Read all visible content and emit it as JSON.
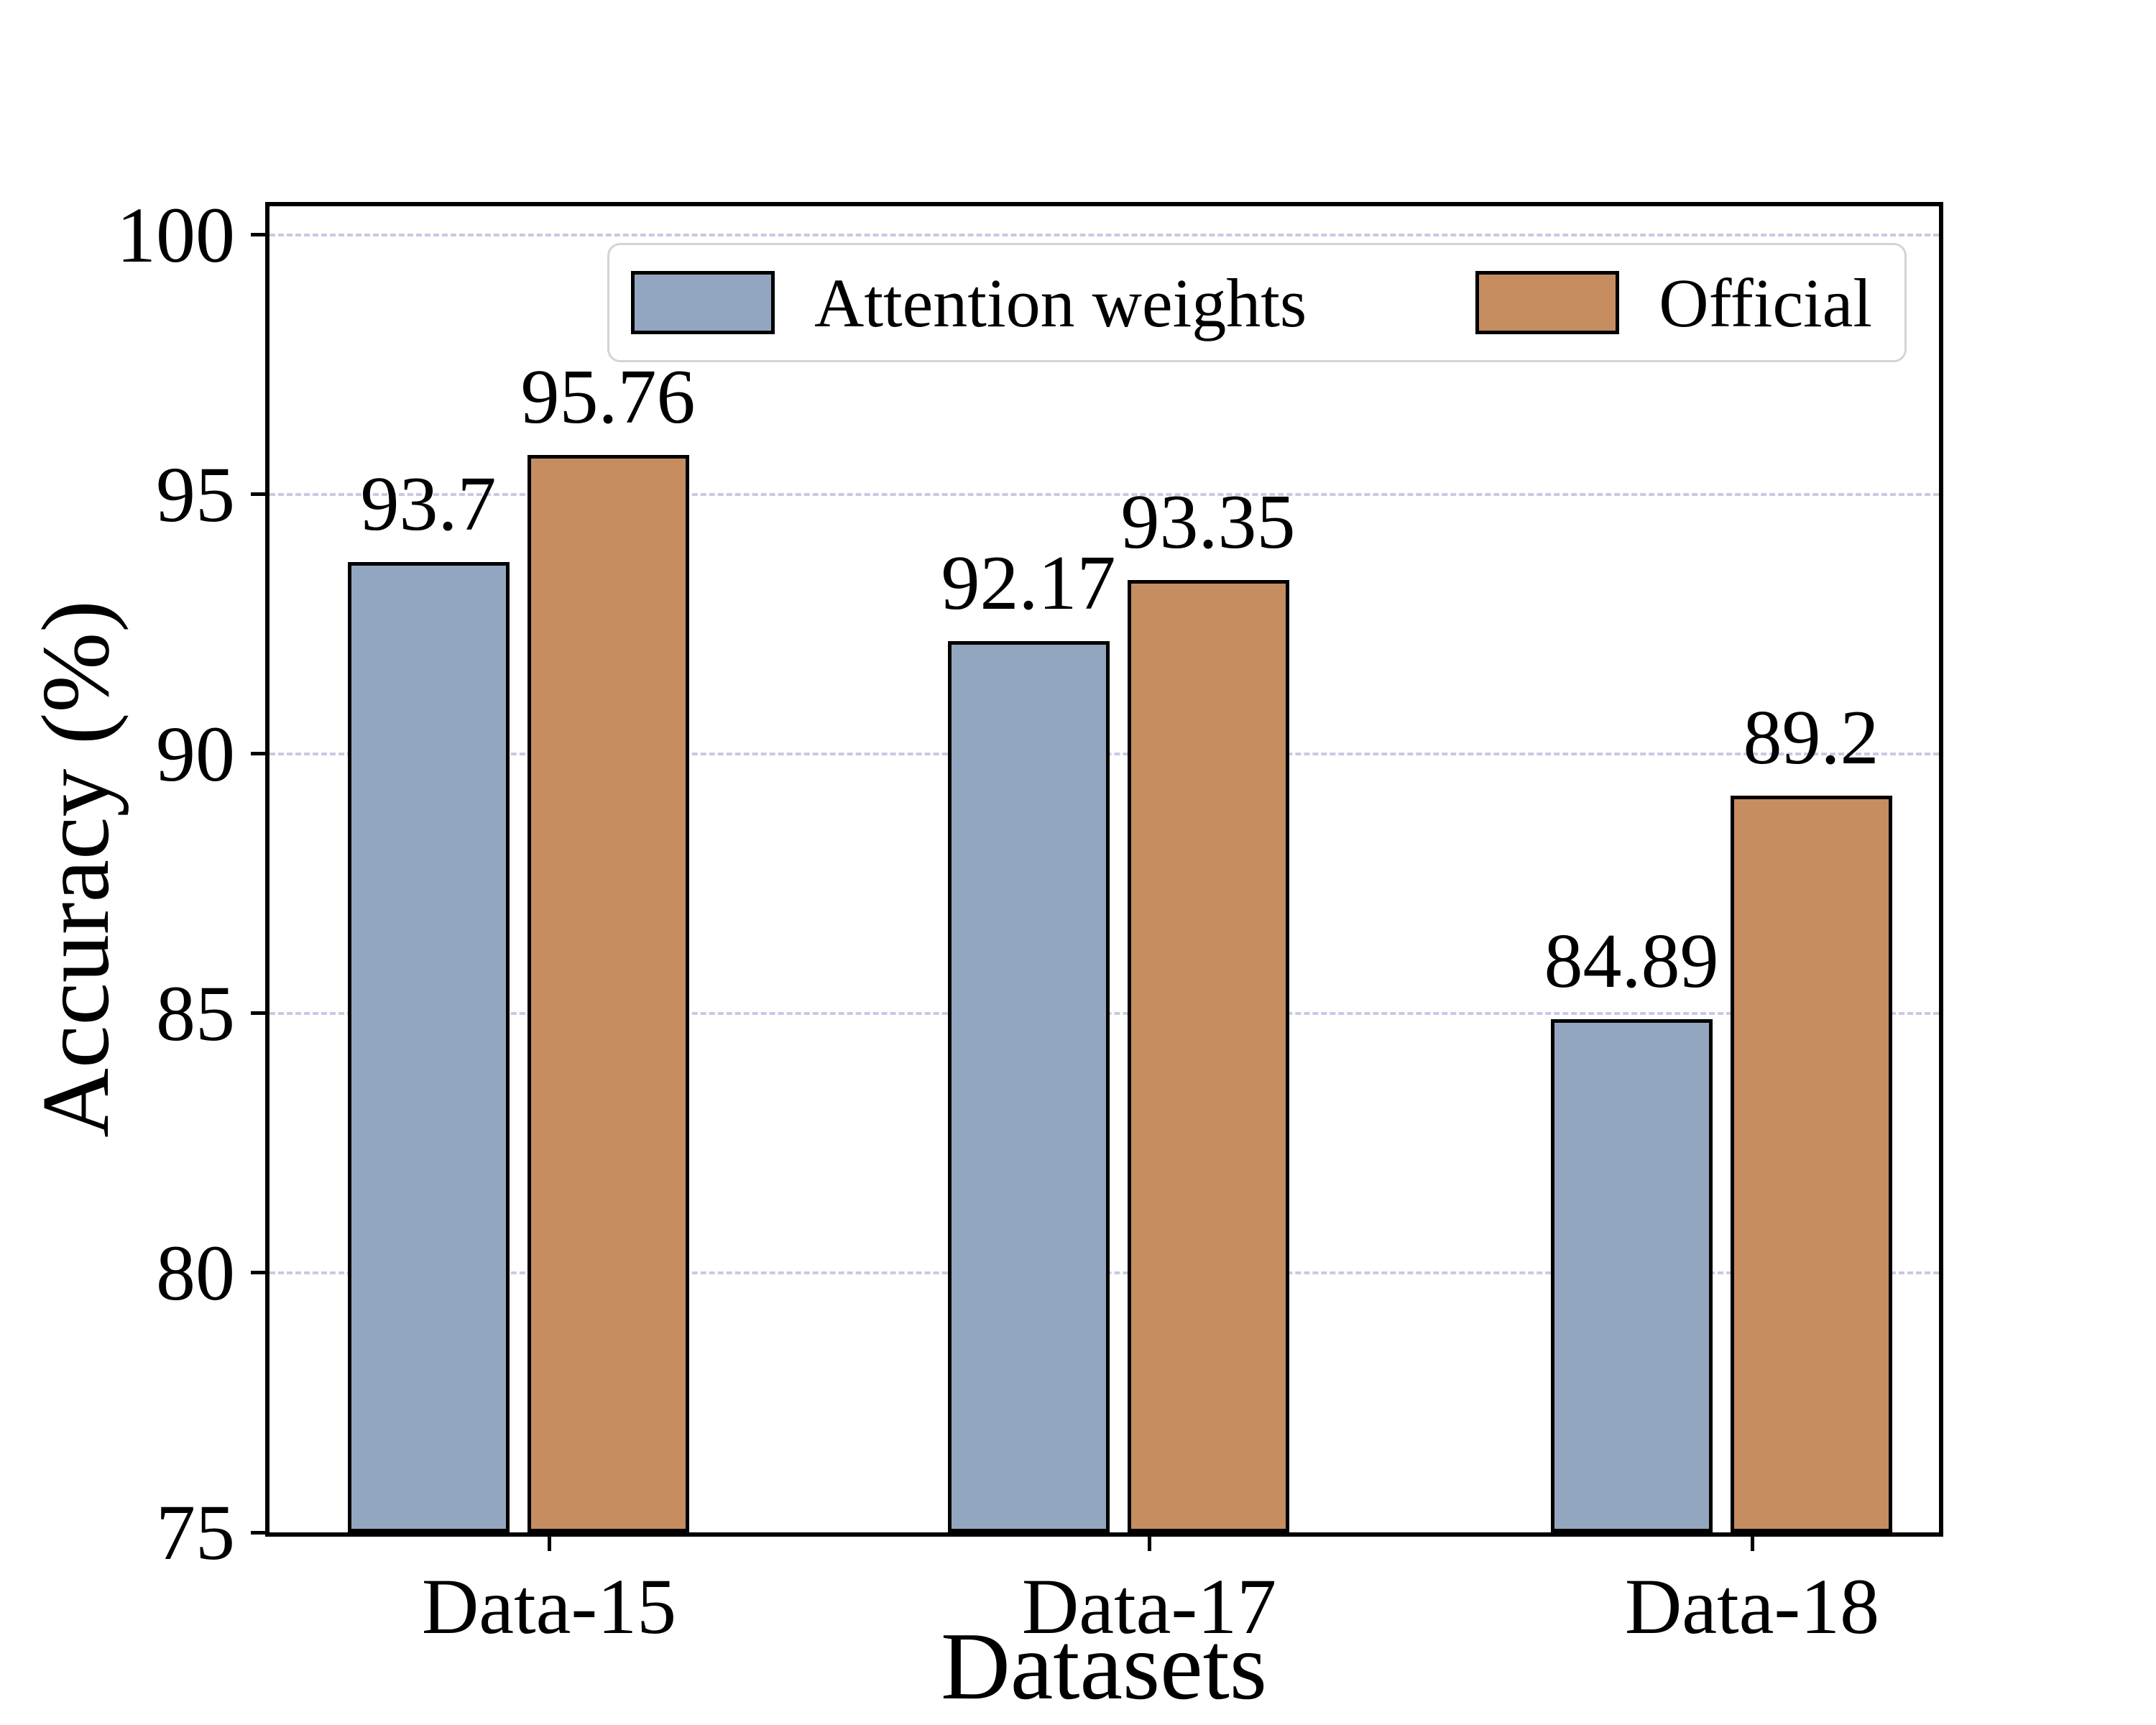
{
  "chart_data": {
    "type": "bar",
    "xlabel": "Datasets",
    "ylabel": "Accuracy (%)",
    "categories": [
      "Data-15",
      "Data-17",
      "Data-18"
    ],
    "series": [
      {
        "name": "Attention weights",
        "color": "#92a7bf",
        "values": [
          93.7,
          92.17,
          84.89
        ],
        "value_labels": [
          "93.7",
          "92.17",
          "84.89"
        ]
      },
      {
        "name": "Official",
        "color": "#c68d60",
        "values": [
          95.76,
          93.35,
          89.2
        ],
        "value_labels": [
          "95.76",
          "93.35",
          "89.2"
        ]
      }
    ],
    "ylim": [
      75,
      100
    ],
    "yticks": [
      75,
      80,
      85,
      90,
      95,
      100
    ],
    "ytick_labels": [
      "75",
      "80",
      "85",
      "90",
      "95",
      "100"
    ],
    "grid": "horizontal, dashed, on yticks above 75",
    "grid_color": "#c9c9e2",
    "bar_edge_color": "#000000",
    "legend_position": "upper center, horizontal"
  }
}
